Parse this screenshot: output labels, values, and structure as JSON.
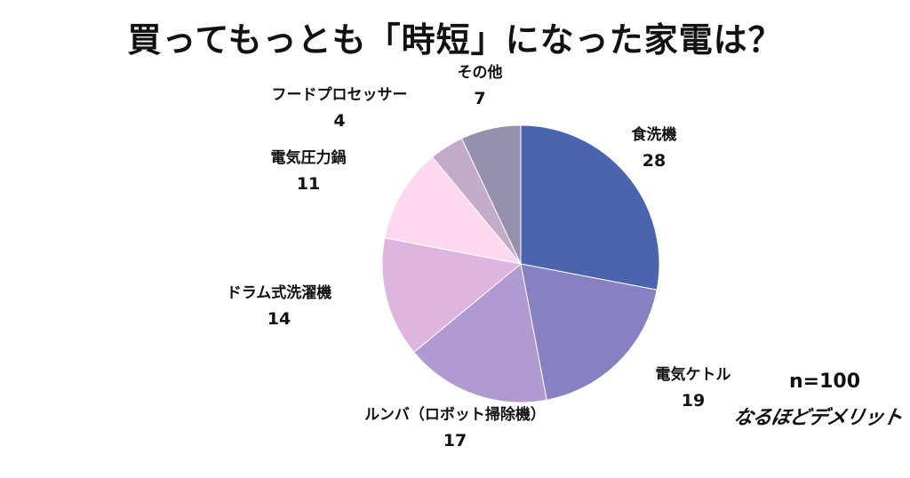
{
  "chart_data": {
    "type": "pie",
    "title": "買ってもっとも「時短」になった家電は？",
    "sample_size": "n=100",
    "slices": [
      {
        "label": "食洗機",
        "value": 28,
        "color": "#4A64AE"
      },
      {
        "label": "電気ケトル",
        "value": 19,
        "color": "#8780C1"
      },
      {
        "label": "ルンバ（ロボット掃除機）",
        "value": 17,
        "color": "#B199D1"
      },
      {
        "label": "ドラム式洗濯機",
        "value": 14,
        "color": "#DDB5DE"
      },
      {
        "label": "電気圧力鍋",
        "value": 11,
        "color": "#FDD8EE"
      },
      {
        "label": "フードプロセッサー",
        "value": 4,
        "color": "#C4AACB"
      },
      {
        "label": "その他",
        "value": 7,
        "color": "#9690AF"
      }
    ]
  },
  "branding": {
    "logo_text": "なるほどデメリット"
  }
}
